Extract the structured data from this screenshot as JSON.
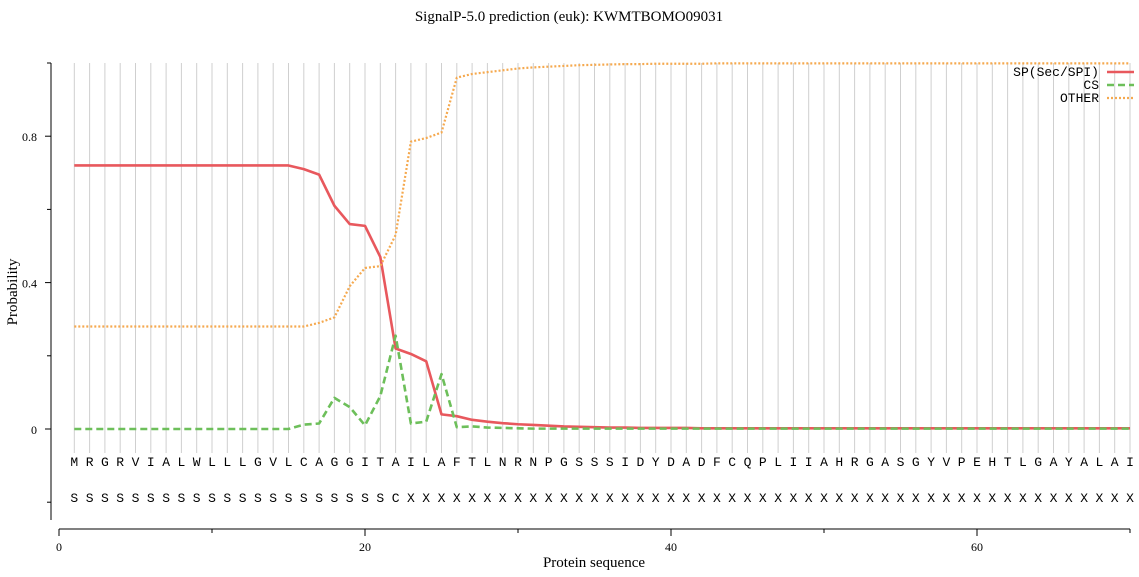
{
  "chart_data": {
    "type": "line",
    "title": "SignalP-5.0 prediction (euk):  KWMTBOMO09031",
    "xlabel": "Protein sequence",
    "ylabel": "Probability",
    "xlim": [
      0,
      70
    ],
    "ylim": [
      -0.25,
      1.0
    ],
    "xticks": [
      0,
      20,
      40,
      60
    ],
    "yticks": [
      0,
      0.4,
      0.8
    ],
    "xtick_labels": [
      "0",
      "20",
      "40",
      "60"
    ],
    "ytick_labels": [
      "0",
      "0.4",
      "0.8"
    ],
    "grid": "vertical lines at each residue",
    "legend_position": "top-right",
    "positions": [
      1,
      2,
      3,
      4,
      5,
      6,
      7,
      8,
      9,
      10,
      11,
      12,
      13,
      14,
      15,
      16,
      17,
      18,
      19,
      20,
      21,
      22,
      23,
      24,
      25,
      26,
      27,
      28,
      29,
      30,
      31,
      32,
      33,
      34,
      35,
      36,
      37,
      38,
      39,
      40,
      41,
      42,
      43,
      44,
      45,
      46,
      47,
      48,
      49,
      50,
      51,
      52,
      53,
      54,
      55,
      56,
      57,
      58,
      59,
      60,
      61,
      62,
      63,
      64,
      65,
      66,
      67,
      68,
      69,
      70
    ],
    "sequence": [
      "M",
      "R",
      "G",
      "R",
      "V",
      "I",
      "A",
      "L",
      "W",
      "L",
      "L",
      "L",
      "G",
      "V",
      "L",
      "C",
      "A",
      "G",
      "G",
      "I",
      "T",
      "A",
      "I",
      "L",
      "A",
      "F",
      "T",
      "L",
      "N",
      "R",
      "N",
      "P",
      "G",
      "S",
      "S",
      "S",
      "I",
      "D",
      "Y",
      "D",
      "A",
      "D",
      "F",
      "C",
      "Q",
      "P",
      "L",
      "I",
      "I",
      "A",
      "H",
      "R",
      "G",
      "A",
      "S",
      "G",
      "Y",
      "V",
      "P",
      "E",
      "H",
      "T",
      "L",
      "G",
      "A",
      "Y",
      "A",
      "L",
      "A",
      "I"
    ],
    "annotation": [
      "S",
      "S",
      "S",
      "S",
      "S",
      "S",
      "S",
      "S",
      "S",
      "S",
      "S",
      "S",
      "S",
      "S",
      "S",
      "S",
      "S",
      "S",
      "S",
      "S",
      "S",
      "C",
      "X",
      "X",
      "X",
      "X",
      "X",
      "X",
      "X",
      "X",
      "X",
      "X",
      "X",
      "X",
      "X",
      "X",
      "X",
      "X",
      "X",
      "X",
      "X",
      "X",
      "X",
      "X",
      "X",
      "X",
      "X",
      "X",
      "X",
      "X",
      "X",
      "X",
      "X",
      "X",
      "X",
      "X",
      "X",
      "X",
      "X",
      "X",
      "X",
      "X",
      "X",
      "X",
      "X",
      "X",
      "X",
      "X",
      "X",
      "X"
    ],
    "series": [
      {
        "name": "SP(Sec/SPI)",
        "color": "#e8585d",
        "style": "solid",
        "values": [
          0.72,
          0.72,
          0.72,
          0.72,
          0.72,
          0.72,
          0.72,
          0.72,
          0.72,
          0.72,
          0.72,
          0.72,
          0.72,
          0.72,
          0.72,
          0.71,
          0.695,
          0.61,
          0.56,
          0.555,
          0.47,
          0.22,
          0.205,
          0.185,
          0.04,
          0.035,
          0.025,
          0.02,
          0.016,
          0.013,
          0.011,
          0.009,
          0.007,
          0.006,
          0.005,
          0.004,
          0.004,
          0.003,
          0.003,
          0.003,
          0.003,
          0.002,
          0.002,
          0.002,
          0.002,
          0.002,
          0.002,
          0.002,
          0.002,
          0.002,
          0.002,
          0.002,
          0.002,
          0.002,
          0.002,
          0.002,
          0.002,
          0.002,
          0.002,
          0.002,
          0.002,
          0.002,
          0.002,
          0.002,
          0.002,
          0.002,
          0.002,
          0.002,
          0.002,
          0.002
        ]
      },
      {
        "name": "CS",
        "color": "#6dbf5a",
        "style": "dashed",
        "values": [
          0.0,
          0.0,
          0.0,
          0.0,
          0.0,
          0.0,
          0.0,
          0.0,
          0.0,
          0.0,
          0.0,
          0.0,
          0.0,
          0.0,
          0.0,
          0.012,
          0.015,
          0.085,
          0.06,
          0.01,
          0.09,
          0.255,
          0.015,
          0.02,
          0.15,
          0.005,
          0.007,
          0.004,
          0.003,
          0.002,
          0.001,
          0.001,
          0.001,
          0.001,
          0.001,
          0.001,
          0.001,
          0.001,
          0.001,
          0.001,
          0.001,
          0.001,
          0.001,
          0.001,
          0.001,
          0.001,
          0.001,
          0.001,
          0.001,
          0.001,
          0.001,
          0.001,
          0.001,
          0.001,
          0.001,
          0.001,
          0.001,
          0.001,
          0.001,
          0.001,
          0.001,
          0.001,
          0.001,
          0.001,
          0.001,
          0.001,
          0.001,
          0.001,
          0.001,
          0.001
        ]
      },
      {
        "name": "OTHER",
        "color": "#f5a94f",
        "style": "dotted",
        "values": [
          0.28,
          0.28,
          0.28,
          0.28,
          0.28,
          0.28,
          0.28,
          0.28,
          0.28,
          0.28,
          0.28,
          0.28,
          0.28,
          0.28,
          0.28,
          0.28,
          0.29,
          0.305,
          0.39,
          0.44,
          0.445,
          0.53,
          0.785,
          0.795,
          0.81,
          0.96,
          0.97,
          0.975,
          0.98,
          0.985,
          0.988,
          0.99,
          0.992,
          0.994,
          0.995,
          0.996,
          0.997,
          0.997,
          0.998,
          0.998,
          0.998,
          0.998,
          0.999,
          0.999,
          0.999,
          0.999,
          0.999,
          0.999,
          0.999,
          0.999,
          0.999,
          0.999,
          0.999,
          0.999,
          0.999,
          0.999,
          0.999,
          0.999,
          0.999,
          0.999,
          0.999,
          0.999,
          0.999,
          0.999,
          0.999,
          0.999,
          0.999,
          0.999,
          0.999,
          0.999
        ]
      }
    ]
  }
}
